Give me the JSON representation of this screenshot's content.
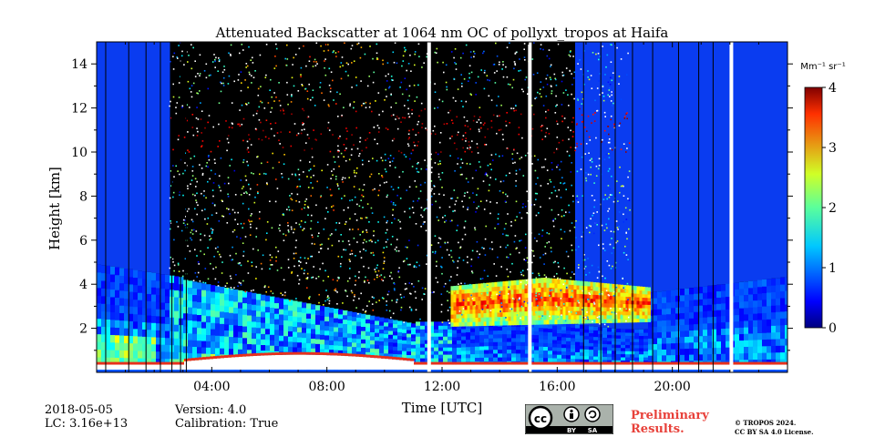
{
  "chart_data": {
    "type": "heatmap",
    "title": "Attenuated Backscatter at 1064 nm OC of pollyxt_tropos at Haifa",
    "xlabel": "Time [UTC]",
    "ylabel": "Height [km]",
    "x_ticks": [
      "04:00",
      "08:00",
      "12:00",
      "16:00",
      "20:00"
    ],
    "x_tick_hours": [
      4,
      8,
      12,
      16,
      20
    ],
    "xlim_hours": [
      0,
      24
    ],
    "y_ticks": [
      2,
      4,
      6,
      8,
      10,
      12,
      14
    ],
    "ylim": [
      0,
      15
    ],
    "colorbar": {
      "unit_label": "Mm⁻¹ sr⁻¹",
      "range": [
        0,
        4
      ],
      "ticks": [
        0,
        1,
        2,
        3,
        4
      ],
      "colormap": "jet"
    },
    "data_gaps_hours": [
      11.55,
      15.05,
      22.05
    ],
    "features": [
      {
        "name": "boundary-layer aerosol",
        "start_h": 0,
        "end_h": 24,
        "top_km": 4.5
      },
      {
        "name": "elevated aerosol layer",
        "start_h": 12.5,
        "end_h": 19,
        "base_km": 2.2,
        "top_km": 4.2
      },
      {
        "name": "high cloud / noise",
        "start_h": 2.5,
        "end_h": 18,
        "base_km": 10,
        "top_km": 15
      }
    ]
  },
  "footer": {
    "date": "2018-05-05",
    "lc": "LC: 3.16e+13",
    "version": "Version: 4.0",
    "calibration": "Calibration: True",
    "preliminary_line1": "Preliminary",
    "preliminary_line2": "Results.",
    "copyright_line1": "© TROPOS 2024.",
    "copyright_line2": "CC BY SA 4.0 License.",
    "cc_by": "BY",
    "cc_sa": "SA"
  }
}
